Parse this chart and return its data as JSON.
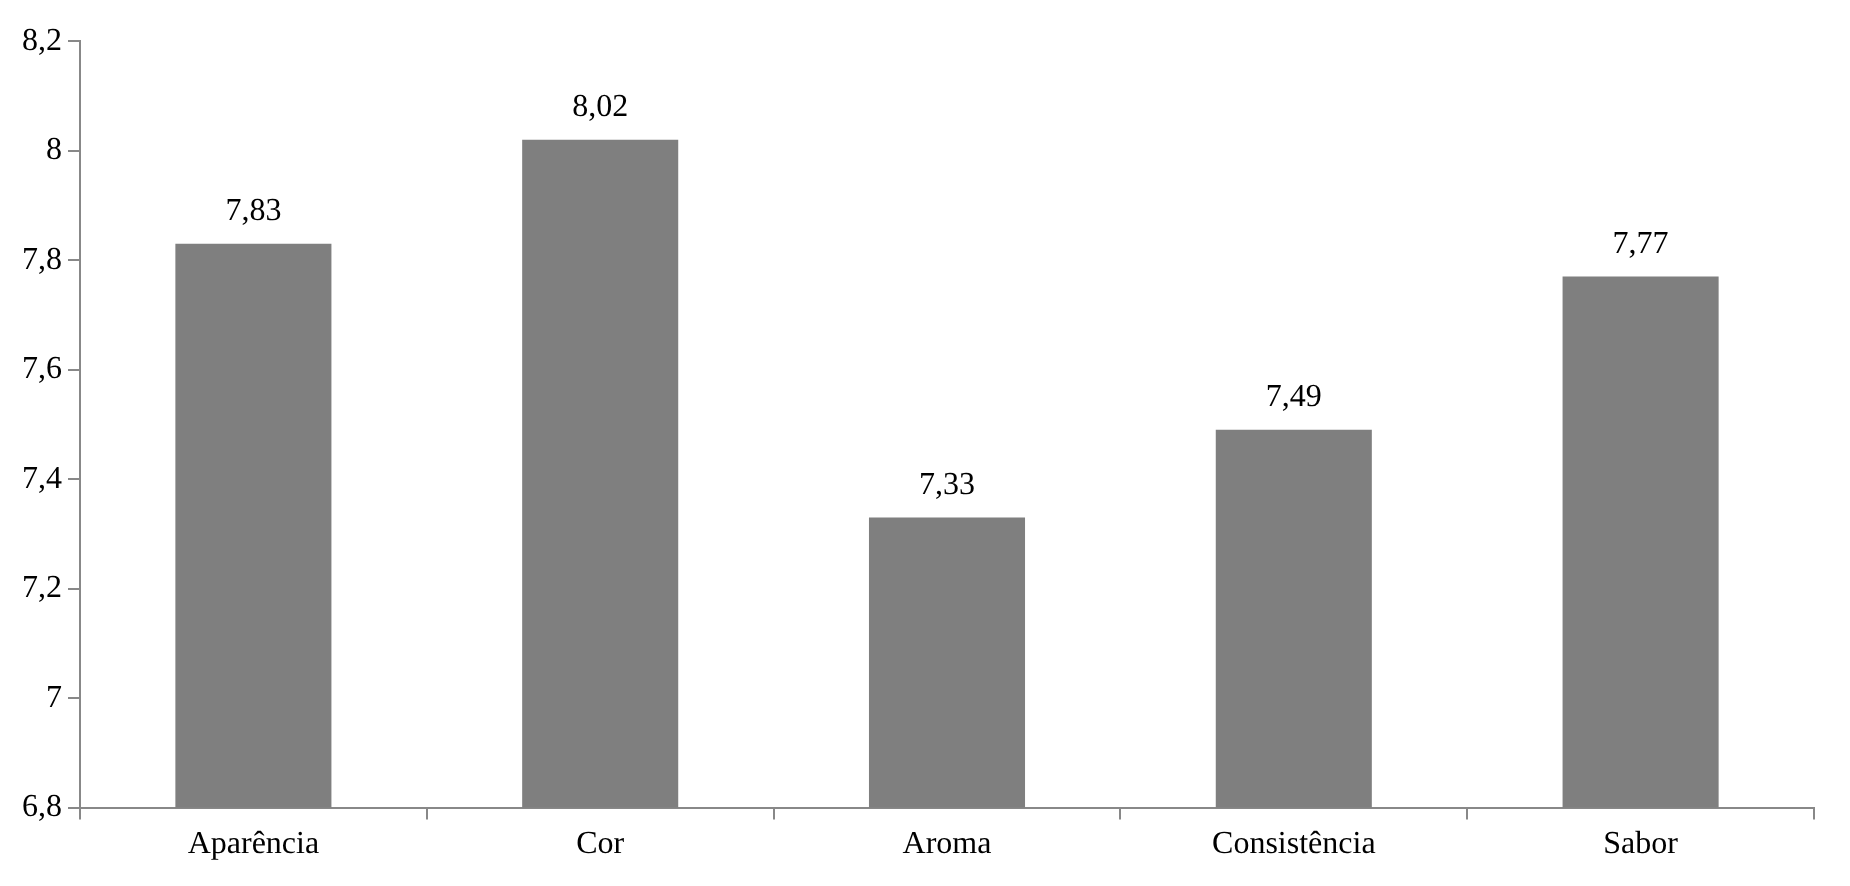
{
  "chart_data": {
    "type": "bar",
    "categories": [
      "Aparência",
      "Cor",
      "Aroma",
      "Consistência",
      "Sabor"
    ],
    "values": [
      7.83,
      8.02,
      7.33,
      7.49,
      7.77
    ],
    "value_labels": [
      "7,83",
      "8,02",
      "7,33",
      "7,49",
      "7,77"
    ],
    "color": "#7f7f7f",
    "ylim": [
      6.8,
      8.2
    ],
    "yticks": [
      {
        "value": 6.8,
        "label": "6,8"
      },
      {
        "value": 7,
        "label": "7"
      },
      {
        "value": 7.2,
        "label": "7,2"
      },
      {
        "value": 7.4,
        "label": "7,4"
      },
      {
        "value": 7.6,
        "label": "7,6"
      },
      {
        "value": 7.8,
        "label": "7,8"
      },
      {
        "value": 8,
        "label": "8"
      },
      {
        "value": 8.2,
        "label": "8,2"
      }
    ],
    "grid": false,
    "legend": false
  }
}
